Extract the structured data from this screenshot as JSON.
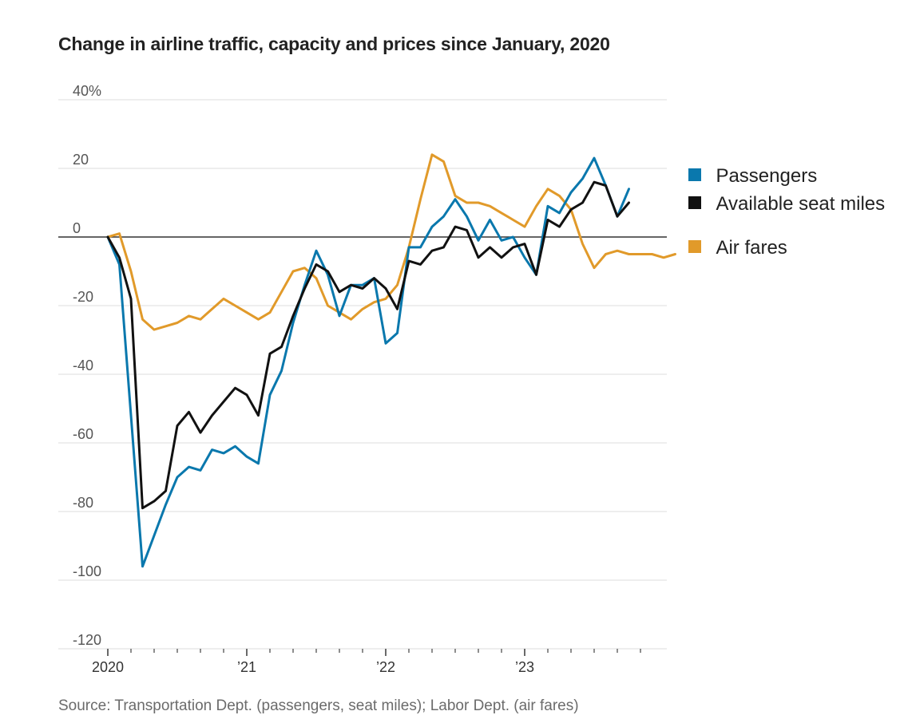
{
  "chart_data": {
    "type": "line",
    "title": "Change in airline traffic, capacity and prices since January, 2020",
    "source": "Source: Transportation Dept. (passengers, seat miles); Labor Dept. (air fares)",
    "ylim": [
      -120,
      40
    ],
    "yticks": [
      40,
      20,
      0,
      -20,
      -40,
      -60,
      -80,
      -100,
      -120
    ],
    "ytick_labels": [
      "40%",
      "20",
      "0",
      "-20",
      "-40",
      "-60",
      "-80",
      "-100",
      "-120"
    ],
    "xlim": [
      "2020-01",
      "2023-12"
    ],
    "xtick_labels": [
      {
        "label": "2020",
        "month": "2020-01"
      },
      {
        "label": "’21",
        "month": "2021-01"
      },
      {
        "label": "’22",
        "month": "2022-01"
      },
      {
        "label": "’23",
        "month": "2023-01"
      }
    ],
    "grid": true,
    "legend_position": "right",
    "series": [
      {
        "name": "Passengers",
        "color": "#0a78ad",
        "start": "2020-01",
        "values": [
          0,
          -8,
          -52,
          -96,
          -87,
          -78,
          -70,
          -67,
          -68,
          -62,
          -63,
          -61,
          -64,
          -66,
          -46,
          -39,
          -25,
          -14,
          -4,
          -11,
          -23,
          -14,
          -14,
          -12,
          -31,
          -28,
          -3,
          -3,
          3,
          6,
          11,
          6,
          -1,
          5,
          -1,
          0,
          -6,
          -11,
          9,
          7,
          13,
          17,
          23,
          15,
          6,
          14
        ]
      },
      {
        "name": "Available seat miles",
        "color": "#111111",
        "start": "2020-01",
        "values": [
          0,
          -6,
          -18,
          -79,
          -77,
          -74,
          -55,
          -51,
          -57,
          -52,
          -48,
          -44,
          -46,
          -52,
          -34,
          -32,
          -23,
          -15,
          -8,
          -10,
          -16,
          -14,
          -15,
          -12,
          -15,
          -21,
          -7,
          -8,
          -4,
          -3,
          3,
          2,
          -6,
          -3,
          -6,
          -3,
          -2,
          -11,
          5,
          3,
          8,
          10,
          16,
          15,
          6,
          10
        ]
      },
      {
        "name": "Air fares",
        "color": "#e19a2a",
        "start": "2020-01",
        "values": [
          0,
          1,
          -10,
          -24,
          -27,
          -26,
          -25,
          -23,
          -24,
          -21,
          -18,
          -20,
          -22,
          -24,
          -22,
          -16,
          -10,
          -9,
          -12,
          -20,
          -22,
          -24,
          -21,
          -19,
          -18,
          -14,
          -3,
          11,
          24,
          22,
          12,
          10,
          10,
          9,
          7,
          5,
          3,
          9,
          14,
          12,
          8,
          -2,
          -9,
          -5,
          -4,
          -5,
          -5,
          -5,
          -6,
          -5
        ]
      }
    ]
  }
}
